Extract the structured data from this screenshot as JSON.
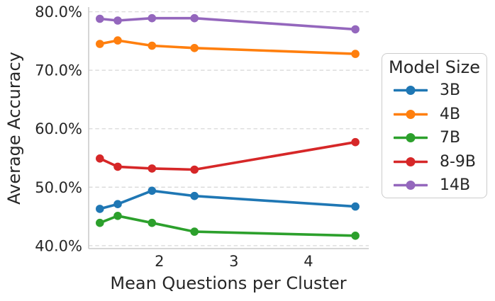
{
  "figure": {
    "background": "#ffffff",
    "text_color": "#262626",
    "grid_color": "#d9d9d9",
    "spine_color": "#c9c9c9"
  },
  "chart_data": {
    "type": "line",
    "title": "",
    "xlabel": "Mean Questions per Cluster",
    "ylabel": "Average Accuracy",
    "x": [
      1.2,
      1.44,
      1.9,
      2.47,
      4.63
    ],
    "series": [
      {
        "name": "3B",
        "color": "#1f77b4",
        "values": [
          46.3,
          47.1,
          49.4,
          48.5,
          46.7
        ]
      },
      {
        "name": "4B",
        "color": "#ff7f0e",
        "values": [
          74.5,
          75.1,
          74.2,
          73.8,
          72.8
        ]
      },
      {
        "name": "7B",
        "color": "#2ca02c",
        "values": [
          43.9,
          45.1,
          43.9,
          42.4,
          41.7
        ]
      },
      {
        "name": "8-9B",
        "color": "#d62728",
        "values": [
          54.9,
          53.5,
          53.2,
          53.0,
          57.7
        ]
      },
      {
        "name": "14B",
        "color": "#9467bd",
        "values": [
          78.8,
          78.5,
          78.9,
          78.9,
          77.0
        ]
      }
    ],
    "xlim": [
      1.05,
      4.81
    ],
    "ylim": [
      39.5,
      80.8
    ],
    "xticks": {
      "values": [
        2,
        3,
        4
      ],
      "labels": [
        "2",
        "3",
        "4"
      ]
    },
    "yticks": {
      "values": [
        40,
        50,
        60,
        70,
        80
      ],
      "labels": [
        "40.0%",
        "50.0%",
        "60.0%",
        "70.0%",
        "80.0%"
      ]
    },
    "grid": "horizontal-dashed",
    "legend": {
      "title": "Model Size",
      "position": "right"
    }
  }
}
